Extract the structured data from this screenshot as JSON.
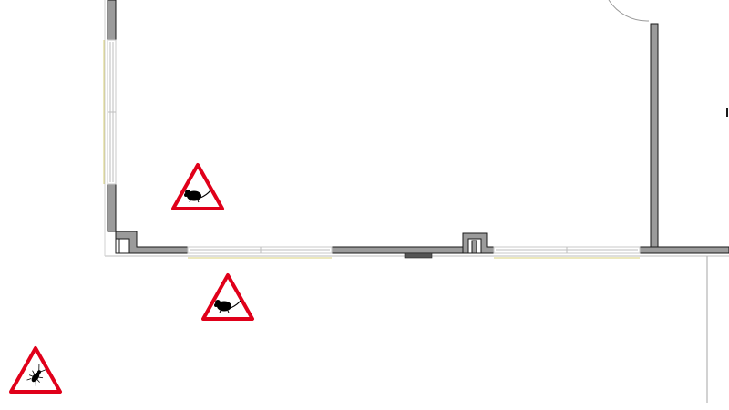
{
  "canvas": {
    "background": "#ffffff"
  },
  "colors": {
    "wall_fill": "#9b9b9b",
    "wall_stroke": "#1a1a1a",
    "window_line": "#d9d07a",
    "window_glass": "#c8c8c8",
    "door_arc": "#9a9a9a",
    "warning_red": "#e0001a",
    "pest_black": "#000000",
    "boundary_line": "#b5b5b5"
  },
  "markers": [
    {
      "id": "rodent-1",
      "pest": "rodent",
      "icon": "mouse-icon"
    },
    {
      "id": "rodent-2",
      "pest": "rodent",
      "icon": "mouse-icon"
    },
    {
      "id": "insect-1",
      "pest": "cockroach",
      "icon": "cockroach-icon"
    }
  ]
}
